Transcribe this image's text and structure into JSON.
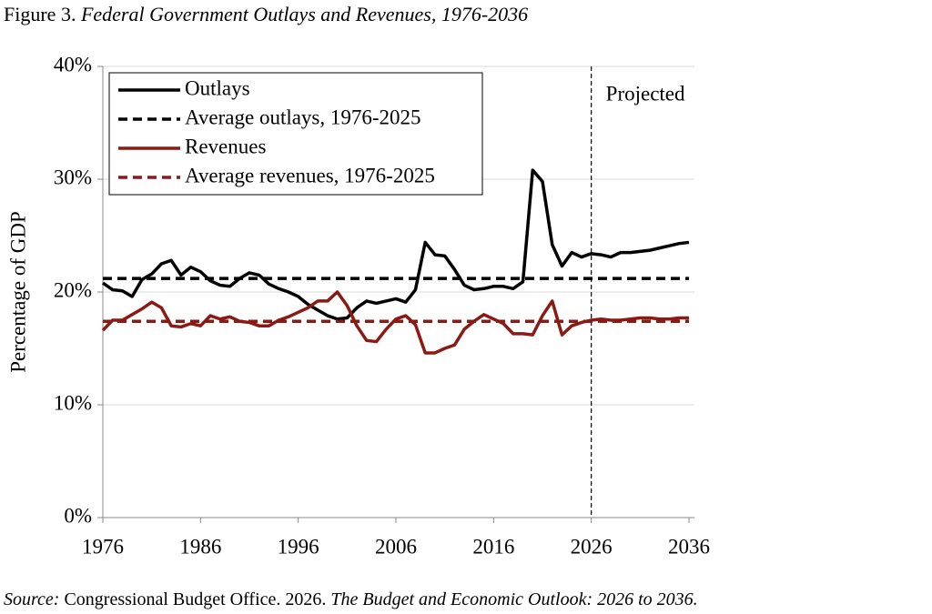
{
  "chart_data": {
    "type": "line",
    "figure_label": "Figure 3.",
    "title": "Federal Government Outlays and Revenues, 1976-2036",
    "y_label": "Percentage of GDP",
    "x": [
      1976,
      1977,
      1978,
      1979,
      1980,
      1981,
      1982,
      1983,
      1984,
      1985,
      1986,
      1987,
      1988,
      1989,
      1990,
      1991,
      1992,
      1993,
      1994,
      1995,
      1996,
      1997,
      1998,
      1999,
      2000,
      2001,
      2002,
      2003,
      2004,
      2005,
      2006,
      2007,
      2008,
      2009,
      2010,
      2011,
      2012,
      2013,
      2014,
      2015,
      2016,
      2017,
      2018,
      2019,
      2020,
      2021,
      2022,
      2023,
      2024,
      2025,
      2026,
      2027,
      2028,
      2029,
      2030,
      2031,
      2032,
      2033,
      2034,
      2035,
      2036
    ],
    "series": [
      {
        "name": "Outlays",
        "color": "#000000",
        "dashed": false,
        "values": [
          20.8,
          20.2,
          20.1,
          19.6,
          21.1,
          21.6,
          22.5,
          22.8,
          21.5,
          22.2,
          21.8,
          21.0,
          20.6,
          20.5,
          21.2,
          21.7,
          21.5,
          20.7,
          20.3,
          20.0,
          19.6,
          18.9,
          18.4,
          17.9,
          17.6,
          17.7,
          18.6,
          19.2,
          19.0,
          19.2,
          19.4,
          19.1,
          20.2,
          24.4,
          23.3,
          23.2,
          22.0,
          20.6,
          20.2,
          20.3,
          20.5,
          20.5,
          20.3,
          20.9,
          30.8,
          29.8,
          24.2,
          22.3,
          23.5,
          23.1,
          23.4,
          23.3,
          23.1,
          23.5,
          23.5,
          23.6,
          23.7,
          23.9,
          24.1,
          24.3,
          24.4
        ]
      },
      {
        "name": "Average outlays, 1976-2025",
        "color": "#000000",
        "dashed": true,
        "value": 21.2
      },
      {
        "name": "Revenues",
        "color": "#8B1A14",
        "dashed": false,
        "values": [
          16.6,
          17.5,
          17.5,
          18.0,
          18.5,
          19.1,
          18.6,
          17.0,
          16.9,
          17.2,
          17.0,
          17.9,
          17.6,
          17.8,
          17.4,
          17.3,
          17.0,
          17.0,
          17.5,
          17.8,
          18.2,
          18.6,
          19.2,
          19.2,
          20.0,
          18.8,
          17.0,
          15.7,
          15.6,
          16.7,
          17.6,
          17.9,
          17.1,
          14.6,
          14.6,
          15.0,
          15.3,
          16.7,
          17.4,
          18.0,
          17.6,
          17.2,
          16.3,
          16.3,
          16.2,
          17.9,
          19.2,
          16.2,
          17.0,
          17.3,
          17.5,
          17.6,
          17.5,
          17.5,
          17.6,
          17.7,
          17.7,
          17.6,
          17.6,
          17.7,
          17.7
        ]
      },
      {
        "name": "Average revenues, 1976-2025",
        "color": "#8B1A14",
        "dashed": true,
        "value": 17.4
      }
    ],
    "xlim": [
      1976,
      2036
    ],
    "xticks": [
      1976,
      1986,
      1996,
      2006,
      2016,
      2026,
      2036
    ],
    "ylim": [
      0,
      40
    ],
    "yticks": [
      {
        "value": 0,
        "label": "0%"
      },
      {
        "value": 10,
        "label": "10%"
      },
      {
        "value": 20,
        "label": "20%"
      },
      {
        "value": 30,
        "label": "30%"
      },
      {
        "value": 40,
        "label": "40%"
      }
    ],
    "grid": true,
    "legend": "upper left",
    "projection": {
      "x": 2026,
      "label": "Projected"
    },
    "source": {
      "label": "Source:",
      "text": "Congressional Budget Office. 2026.",
      "publication": "The Budget and Economic Outlook: 2026 to 2036."
    }
  }
}
